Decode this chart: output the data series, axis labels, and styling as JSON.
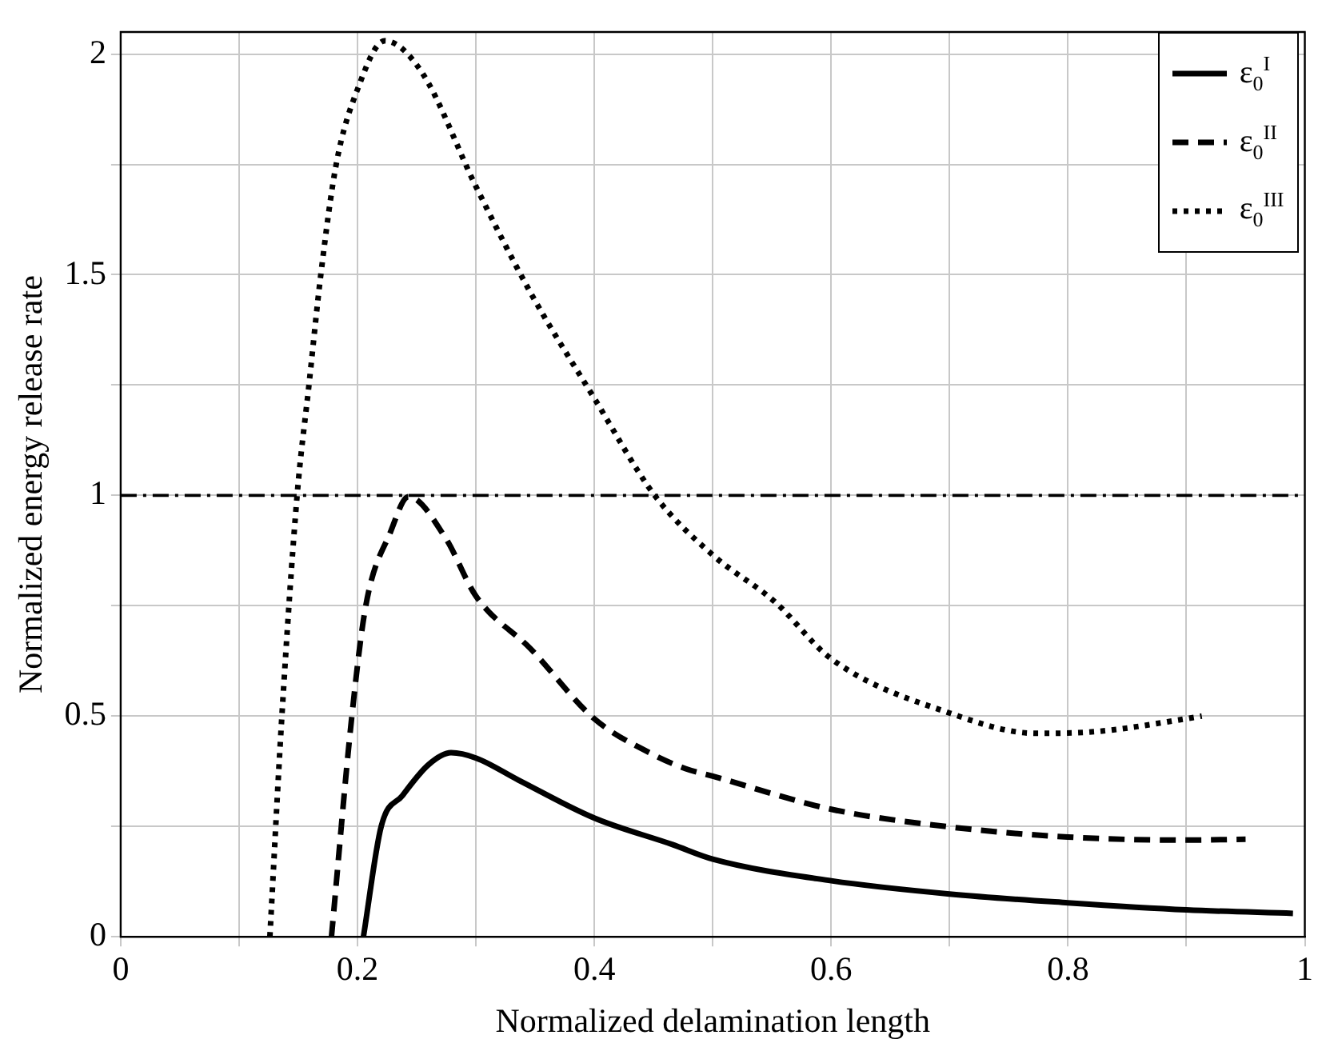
{
  "chart_data": {
    "type": "line",
    "xlabel": "Normalized delamination length",
    "ylabel": "Normalized energy release rate",
    "xlim": [
      0,
      1
    ],
    "ylim": [
      0,
      2.05
    ],
    "xticks": [
      0,
      {
        "value": 0.1,
        "label": null
      },
      0.2,
      {
        "value": 0.3,
        "label": null
      },
      0.4,
      {
        "value": 0.5,
        "label": null
      },
      0.6,
      {
        "value": 0.7,
        "label": null
      },
      0.8,
      {
        "value": 0.9,
        "label": null
      },
      1
    ],
    "yticks": [
      0,
      {
        "value": 0.25,
        "label": null
      },
      0.5,
      {
        "value": 0.75,
        "label": null
      },
      1,
      {
        "value": 1.25,
        "label": null
      },
      1.5,
      {
        "value": 1.75,
        "label": null
      },
      2
    ],
    "grid": true,
    "legend": "top right",
    "marker": "none",
    "ref_lines": [
      {
        "axis": "y",
        "value": 1,
        "color": "#000000",
        "line_style": "dashdot"
      }
    ],
    "series": [
      {
        "name": "ε$_{0}$$^{I}$",
        "color": "#000000",
        "line_style": "solid",
        "x": [
          0.205,
          0.22,
          0.238,
          0.26,
          0.279,
          0.3,
          0.336,
          0.4,
          0.466,
          0.5,
          0.6,
          0.7,
          0.8,
          0.9,
          0.99
        ],
        "values": [
          0,
          0.25,
          0.32,
          0.39,
          0.417,
          0.405,
          0.355,
          0.269,
          0.209,
          0.176,
          0.127,
          0.097,
          0.077,
          0.061,
          0.053
        ]
      },
      {
        "name": "ε$_{0}$$^{II}$",
        "color": "#000000",
        "line_style": "dashed",
        "x": [
          0.178,
          0.195,
          0.207,
          0.228,
          0.243,
          0.274,
          0.3,
          0.346,
          0.4,
          0.448,
          0.477,
          0.5,
          0.6,
          0.7,
          0.8,
          0.9,
          0.95
        ],
        "values": [
          0,
          0.494,
          0.75,
          0.918,
          0.997,
          0.905,
          0.772,
          0.653,
          0.494,
          0.415,
          0.381,
          0.364,
          0.289,
          0.249,
          0.226,
          0.219,
          0.221
        ]
      },
      {
        "name": "ε$_{0}$$^{III}$",
        "color": "#000000",
        "line_style": "dotted",
        "x": [
          0.126,
          0.136,
          0.149,
          0.159,
          0.169,
          0.182,
          0.2,
          0.223,
          0.254,
          0.3,
          0.346,
          0.4,
          0.451,
          0.5,
          0.552,
          0.6,
          0.7,
          0.773,
          0.824,
          0.9,
          0.913
        ],
        "values": [
          0,
          0.494,
          1,
          1.25,
          1.5,
          1.75,
          1.92,
          2.03,
          1.96,
          1.7,
          1.46,
          1.22,
          1,
          0.865,
          0.76,
          0.63,
          0.507,
          0.461,
          0.465,
          0.494,
          0.5
        ]
      }
    ]
  }
}
